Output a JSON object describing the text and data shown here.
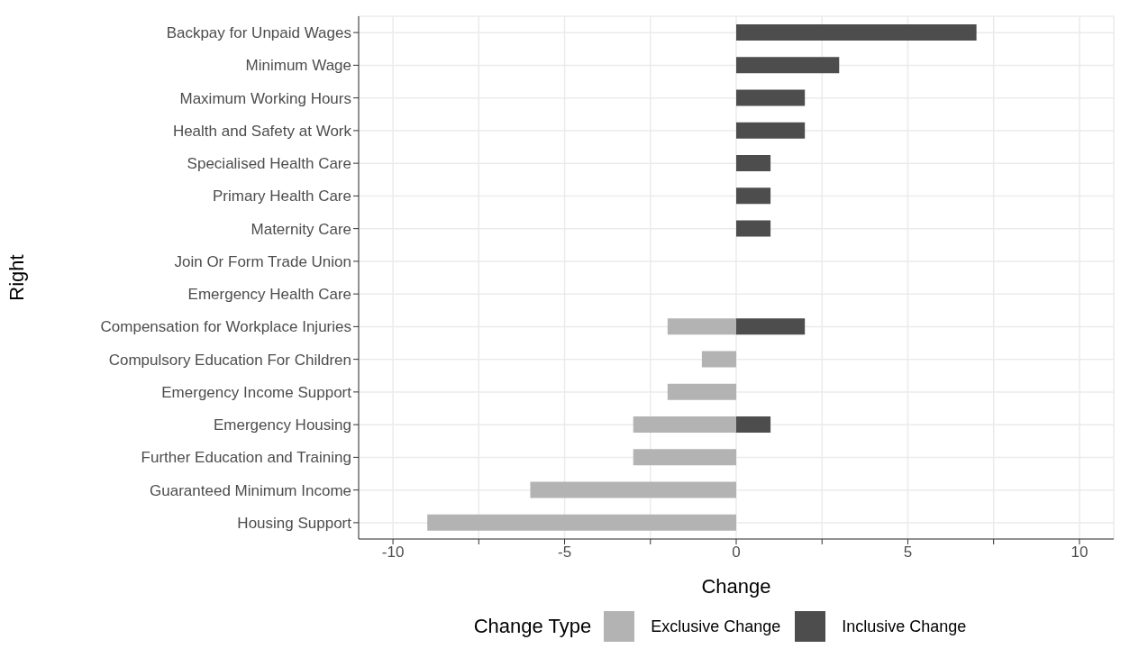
{
  "chart_data": {
    "type": "bar",
    "orientation": "horizontal",
    "stacked": true,
    "categories": [
      "Backpay for Unpaid Wages",
      "Minimum Wage",
      "Maximum Working Hours",
      "Health and Safety at Work",
      "Specialised Health Care",
      "Primary Health Care",
      "Maternity Care",
      "Join Or Form Trade Union",
      "Emergency Health Care",
      "Compensation for Workplace Injuries",
      "Compulsory Education For Children",
      "Emergency Income Support",
      "Emergency Housing",
      "Further Education and Training",
      "Guaranteed Minimum Income",
      "Housing Support"
    ],
    "series": [
      {
        "name": "Exclusive Change",
        "color": "#b3b3b3",
        "values": [
          null,
          null,
          null,
          null,
          null,
          null,
          null,
          null,
          null,
          -2,
          -1,
          -2,
          -3,
          -3,
          -6,
          -9
        ]
      },
      {
        "name": "Inclusive Change",
        "color": "#4d4d4d",
        "values": [
          7,
          3,
          2,
          2,
          1,
          1,
          1,
          null,
          null,
          2,
          null,
          null,
          1,
          null,
          null,
          null
        ]
      }
    ],
    "xlim": [
      -11,
      11
    ],
    "xticks": [
      -10,
      {
        "value": -7.5,
        "label": null
      },
      -5,
      {
        "value": -2.5,
        "label": null
      },
      0,
      {
        "value": 2.5,
        "label": null
      },
      5,
      {
        "value": 7.5,
        "label": null
      },
      10
    ],
    "xlabel": "Change",
    "ylabel": "Right",
    "legend_title": "Change Type",
    "legend": "bottom",
    "grid": true
  }
}
